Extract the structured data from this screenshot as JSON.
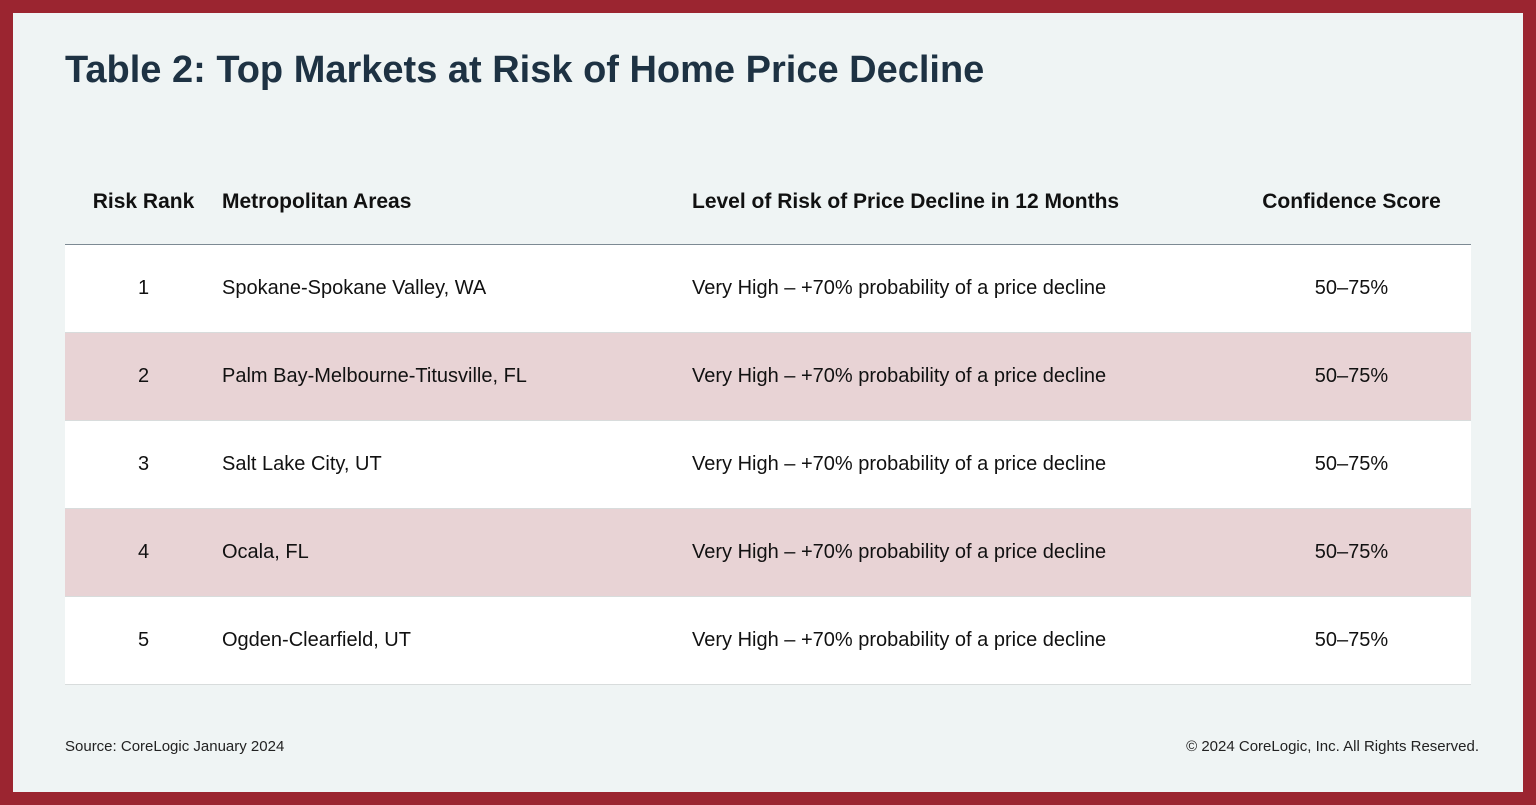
{
  "title": "Table 2: Top Markets at Risk of Home Price Decline",
  "headers": {
    "rank": "Risk Rank",
    "metro": "Metropolitan Areas",
    "risk": "Level of Risk of Price Decline in 12 Months",
    "confidence": "Confidence Score"
  },
  "rows": [
    {
      "rank": "1",
      "metro": "Spokane-Spokane Valley, WA",
      "risk": "Very High – +70% probability of a price decline",
      "confidence": "50–75%"
    },
    {
      "rank": "2",
      "metro": "Palm Bay-Melbourne-Titusville, FL",
      "risk": "Very High – +70% probability of a price decline",
      "confidence": "50–75%"
    },
    {
      "rank": "3",
      "metro": "Salt Lake City, UT",
      "risk": "Very High – +70% probability of a price decline",
      "confidence": "50–75%"
    },
    {
      "rank": "4",
      "metro": "Ocala, FL",
      "risk": "Very High – +70% probability of a price decline",
      "confidence": "50–75%"
    },
    {
      "rank": "5",
      "metro": "Ogden-Clearfield, UT",
      "risk": "Very High – +70% probability of a price decline",
      "confidence": "50–75%"
    }
  ],
  "footer": {
    "source": "Source: CoreLogic January 2024",
    "copyright": "© 2024 CoreLogic, Inc. All Rights Reserved."
  },
  "colors": {
    "border": "#9b2530",
    "background": "#eff4f4",
    "title": "#1e3243",
    "row_alt": "#e8d3d5"
  }
}
